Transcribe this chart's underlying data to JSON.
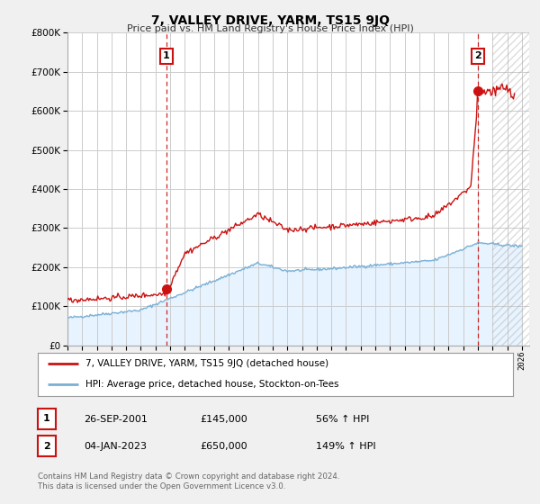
{
  "title": "7, VALLEY DRIVE, YARM, TS15 9JQ",
  "subtitle": "Price paid vs. HM Land Registry's House Price Index (HPI)",
  "ylim": [
    0,
    800000
  ],
  "xlim_start": 1995.0,
  "xlim_end": 2026.5,
  "hpi_color": "#7ab0d4",
  "price_color": "#cc1111",
  "hpi_fill_color": "#ddeeff",
  "marker1_date": 2001.74,
  "marker1_price": 145000,
  "marker1_label": "1",
  "marker2_date": 2023.01,
  "marker2_price": 650000,
  "marker2_label": "2",
  "legend_line1": "7, VALLEY DRIVE, YARM, TS15 9JQ (detached house)",
  "legend_line2": "HPI: Average price, detached house, Stockton-on-Tees",
  "table_row1": [
    "1",
    "26-SEP-2001",
    "£145,000",
    "56% ↑ HPI"
  ],
  "table_row2": [
    "2",
    "04-JAN-2023",
    "£650,000",
    "149% ↑ HPI"
  ],
  "footnote": "Contains HM Land Registry data © Crown copyright and database right 2024.\nThis data is licensed under the Open Government Licence v3.0.",
  "bg_color": "#f0f0f0",
  "plot_bg_color": "#ffffff",
  "grid_color": "#cccccc"
}
